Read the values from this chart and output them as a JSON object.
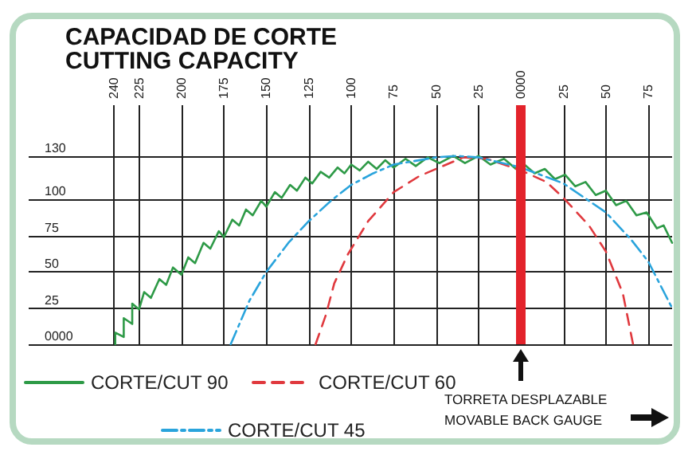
{
  "chart_data": {
    "type": "line",
    "title": "CAPACIDAD DE CORTE\nCUTTING CAPACITY",
    "xlim": [
      -290,
      89
    ],
    "ylim": [
      0,
      165
    ],
    "xticks": [
      {
        "value": -240,
        "label": "240"
      },
      {
        "value": -225,
        "label": "225"
      },
      {
        "value": -200,
        "label": "200"
      },
      {
        "value": -175,
        "label": "175"
      },
      {
        "value": -150,
        "label": "150"
      },
      {
        "value": -125,
        "label": "125"
      },
      {
        "value": -100,
        "label": "100"
      },
      {
        "value": -75,
        "label": "75"
      },
      {
        "value": -50,
        "label": "50"
      },
      {
        "value": -25,
        "label": "25"
      },
      {
        "value": 0,
        "label": "0000"
      },
      25,
      50,
      75
    ],
    "yticks": [
      {
        "value": 0,
        "label": "0000"
      },
      25,
      50,
      75,
      100,
      130
    ],
    "grid": true,
    "legend": "bottom",
    "marker": "none",
    "ref_lines": [
      {
        "axis": "x",
        "value": 0,
        "color": "#e3232b"
      }
    ],
    "annotations": [
      "TORRETA DESPLAZABLE\nMOVABLE BACK GAUGE"
    ],
    "series": [
      {
        "name": "CORTE/CUT 90",
        "color": "#2e9a47",
        "line_style": "solid",
        "x": [
          -239,
          -239,
          -234,
          -234,
          -229,
          -229,
          -225,
          -222,
          -218,
          -213,
          -209,
          -205,
          -200,
          -196,
          -192,
          -187,
          -183,
          -178,
          -175,
          -170,
          -166,
          -162,
          -158,
          -153,
          -150,
          -145,
          -141,
          -136,
          -132,
          -127,
          -123,
          -118,
          -113,
          -108,
          -104,
          -100,
          -95,
          -90,
          -85,
          -80,
          -75,
          -68,
          -62,
          -55,
          -48,
          -40,
          -33,
          -25,
          -18,
          -10,
          -3,
          2,
          8,
          14,
          20,
          26,
          32,
          38,
          44,
          50,
          56,
          62,
          68,
          74,
          80,
          84,
          89
        ],
        "values": [
          0,
          8,
          5,
          18,
          14,
          28,
          24,
          36,
          32,
          45,
          41,
          53,
          48,
          60,
          56,
          70,
          66,
          78,
          74,
          86,
          82,
          93,
          89,
          99,
          95,
          105,
          101,
          110,
          106,
          115,
          111,
          119,
          115,
          122,
          118,
          124,
          120,
          126,
          121,
          127,
          122,
          128,
          123,
          129,
          125,
          130,
          125,
          130,
          124,
          128,
          121,
          124,
          118,
          121,
          114,
          117,
          109,
          112,
          103,
          106,
          96,
          99,
          89,
          91,
          80,
          82,
          70
        ]
      },
      {
        "name": "CORTE/CUT 60",
        "color": "#e0393e",
        "line_style": "dashed",
        "x": [
          -121,
          -115,
          -110,
          -102,
          -90,
          -75,
          -60,
          -50,
          -34,
          -20,
          0,
          15,
          25,
          40,
          50,
          60,
          66
        ],
        "values": [
          0,
          20,
          42,
          62,
          85,
          105,
          116,
          121,
          129,
          128,
          120,
          112,
          101,
          82,
          64,
          35,
          0
        ]
      },
      {
        "name": "CORTE/CUT 45",
        "color": "#2aa4dc",
        "line_style": "dashdot",
        "x": [
          -171,
          -160,
          -150,
          -137,
          -125,
          -112,
          -100,
          -87,
          -75,
          -50,
          -38,
          -25,
          0,
          25,
          50,
          65,
          75,
          89
        ],
        "values": [
          0,
          30,
          50,
          70,
          85,
          99,
          110,
          118,
          124,
          129,
          130,
          129,
          122,
          111,
          91,
          72,
          57,
          25
        ]
      }
    ]
  }
}
